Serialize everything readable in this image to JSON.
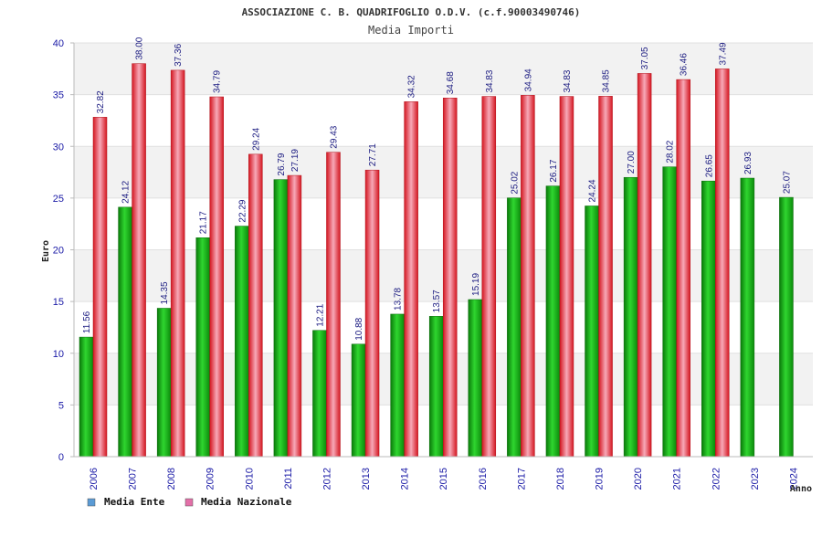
{
  "chart_data": {
    "type": "bar",
    "title": "ASSOCIAZIONE C. B. QUADRIFOGLIO O.D.V. (c.f.90003490746)",
    "subtitle": "Media Importi",
    "xlabel": "Anno",
    "ylabel": "Euro",
    "ylim": [
      0,
      40
    ],
    "yticks": [
      0,
      5,
      10,
      15,
      20,
      25,
      30,
      35,
      40
    ],
    "grid": "horizontal bands",
    "legend_position": "bottom-left",
    "categories": [
      "2006",
      "2007",
      "2008",
      "2009",
      "2010",
      "2011",
      "2012",
      "2013",
      "2014",
      "2015",
      "2016",
      "2017",
      "2018",
      "2019",
      "2020",
      "2021",
      "2022",
      "2023",
      "2024"
    ],
    "series": [
      {
        "name": "Media Ente",
        "bar_color": "#13b313",
        "legend_color": "#5b9bd5",
        "values": [
          11.56,
          24.12,
          14.35,
          21.17,
          22.29,
          26.79,
          12.21,
          10.88,
          13.78,
          13.57,
          15.19,
          25.02,
          26.17,
          24.24,
          27.0,
          28.02,
          26.65,
          26.93,
          25.07
        ],
        "labels": [
          "11.56",
          "24.12",
          "14.35",
          "21.17",
          "22.29",
          "26.79",
          "12.21",
          "10.88",
          "13.78",
          "13.57",
          "15.19",
          "25.02",
          "26.17",
          "24.24",
          "27.00",
          "28.02",
          "26.65",
          "26.93",
          "25.07"
        ]
      },
      {
        "name": "Media Nazionale",
        "bar_color": "#e8202a",
        "legend_color": "#e36fa8",
        "values": [
          32.82,
          38.0,
          37.36,
          34.79,
          29.24,
          27.19,
          29.43,
          27.71,
          34.32,
          34.68,
          34.83,
          34.94,
          34.83,
          34.85,
          37.05,
          36.46,
          37.49,
          null,
          null
        ],
        "labels": [
          "32.82",
          "38.00",
          "37.36",
          "34.79",
          "29.24",
          "27.19",
          "29.43",
          "27.71",
          "34.32",
          "34.68",
          "34.83",
          "34.94",
          "34.83",
          "34.85",
          "37.05",
          "36.46",
          "37.49",
          null,
          null
        ]
      }
    ]
  }
}
